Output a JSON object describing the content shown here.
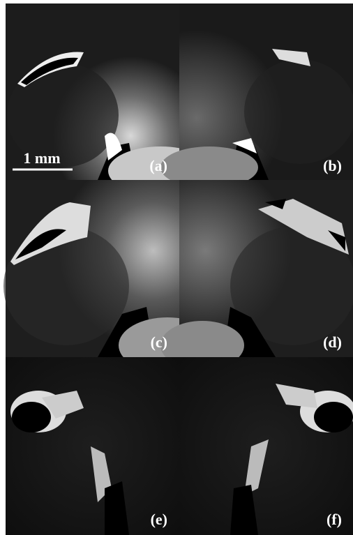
{
  "panels": [
    {
      "label": "(a)"
    },
    {
      "label": "(b)"
    },
    {
      "label": "(c)"
    },
    {
      "label": "(d)"
    },
    {
      "label": "(e)"
    },
    {
      "label": "(f)"
    }
  ],
  "scale_bar": {
    "label": "1 mm"
  }
}
